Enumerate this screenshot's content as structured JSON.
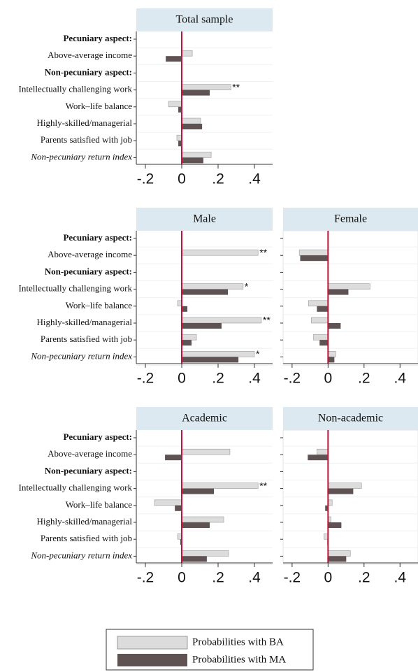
{
  "chart_data": [
    {
      "type": "bar",
      "orientation": "horizontal",
      "title": "Total sample",
      "categories": [
        "Pecuniary aspect:",
        "Above-average income",
        "Non-pecuniary aspect:",
        "Intellectually challenging work",
        "Work–life balance",
        "Highly-skilled/managerial",
        "Parents satisfied with job",
        "Non-pecuniary return index"
      ],
      "series": [
        {
          "name": "Probabilities with BA",
          "color": "#dcdcdc",
          "values": [
            null,
            0.058,
            null,
            0.27,
            -0.073,
            0.104,
            -0.027,
            0.162
          ],
          "significance": [
            null,
            null,
            null,
            "**",
            null,
            null,
            null,
            null
          ]
        },
        {
          "name": "Probabilities with MA",
          "color": "#5f5252",
          "values": [
            null,
            -0.088,
            null,
            0.154,
            -0.019,
            0.112,
            -0.019,
            0.119
          ]
        }
      ],
      "xlim": [
        -0.25,
        0.5
      ],
      "xticks": [
        {
          "value": -0.2,
          "label": "-.2"
        },
        0,
        {
          "value": 0.2,
          "label": ".2"
        },
        {
          "value": 0.4,
          "label": ".4"
        }
      ],
      "xline": {
        "value": 0,
        "color": "#c0143c"
      }
    },
    {
      "type": "bar",
      "orientation": "horizontal",
      "title": "Male",
      "categories": [
        "Pecuniary aspect:",
        "Above-average income",
        "Non-pecuniary aspect:",
        "Intellectually challenging work",
        "Work–life balance",
        "Highly-skilled/managerial",
        "Parents satisfied with job",
        "Non-pecuniary return index"
      ],
      "series": [
        {
          "color": "#dcdcdc",
          "values": [
            null,
            0.42,
            null,
            0.338,
            -0.023,
            0.438,
            0.081,
            0.4
          ],
          "significance": [
            null,
            "**",
            null,
            "*",
            null,
            "**",
            null,
            "*"
          ]
        },
        {
          "color": "#5f5252",
          "values": [
            null,
            0,
            null,
            0.254,
            0.031,
            0.219,
            0.054,
            0.312
          ]
        }
      ],
      "xlim": [
        -0.25,
        0.5
      ],
      "xticks": [
        {
          "value": -0.2,
          "label": "-.2"
        },
        0,
        {
          "value": 0.2,
          "label": ".2"
        },
        {
          "value": 0.4,
          "label": ".4"
        }
      ],
      "xline": {
        "value": 0,
        "color": "#c0143c"
      }
    },
    {
      "type": "bar",
      "orientation": "horizontal",
      "title": "Female",
      "series": [
        {
          "color": "#dcdcdc",
          "values": [
            null,
            -0.16,
            null,
            0.233,
            -0.109,
            -0.093,
            -0.082,
            0.043
          ]
        },
        {
          "color": "#5f5252",
          "values": [
            null,
            -0.155,
            null,
            0.113,
            -0.062,
            0.07,
            -0.047,
            0.035
          ]
        }
      ],
      "xlim": [
        -0.25,
        0.5
      ],
      "xticks": [
        {
          "value": -0.2,
          "label": "-.2"
        },
        0,
        {
          "value": 0.2,
          "label": ".2"
        },
        {
          "value": 0.4,
          "label": ".4"
        }
      ],
      "xline": {
        "value": 0,
        "color": "#c0143c"
      }
    },
    {
      "type": "bar",
      "orientation": "horizontal",
      "title": "Academic",
      "categories": [
        "Pecuniary aspect:",
        "Above-average income",
        "Non-pecuniary aspect:",
        "Intellectually challenging work",
        "Work–life balance",
        "Highly-skilled/managerial",
        "Parents satisfied with job",
        "Non-pecuniary return index"
      ],
      "series": [
        {
          "color": "#dcdcdc",
          "values": [
            null,
            0.265,
            null,
            0.42,
            -0.15,
            0.231,
            -0.023,
            0.258
          ],
          "significance": [
            null,
            null,
            null,
            "**",
            null,
            null,
            null,
            null
          ]
        },
        {
          "color": "#5f5252",
          "values": [
            null,
            -0.092,
            null,
            0.177,
            -0.038,
            0.154,
            -0.008,
            0.138
          ]
        }
      ],
      "xlim": [
        -0.25,
        0.5
      ],
      "xticks": [
        {
          "value": -0.2,
          "label": "-.2"
        },
        0,
        {
          "value": 0.2,
          "label": ".2"
        },
        {
          "value": 0.4,
          "label": ".4"
        }
      ],
      "xline": {
        "value": 0,
        "color": "#c0143c"
      }
    },
    {
      "type": "bar",
      "orientation": "horizontal",
      "title": "Non-academic",
      "series": [
        {
          "color": "#dcdcdc",
          "values": [
            null,
            -0.062,
            null,
            0.186,
            0.023,
            0.016,
            -0.023,
            0.124
          ]
        },
        {
          "color": "#5f5252",
          "values": [
            null,
            -0.113,
            null,
            0.14,
            -0.016,
            0.074,
            -0.004,
            0.101
          ]
        }
      ],
      "xlim": [
        -0.25,
        0.5
      ],
      "xticks": [
        {
          "value": -0.2,
          "label": "-.2"
        },
        0,
        {
          "value": 0.2,
          "label": ".2"
        },
        {
          "value": 0.4,
          "label": ".4"
        }
      ],
      "xline": {
        "value": 0,
        "color": "#c0143c"
      }
    }
  ]
}
